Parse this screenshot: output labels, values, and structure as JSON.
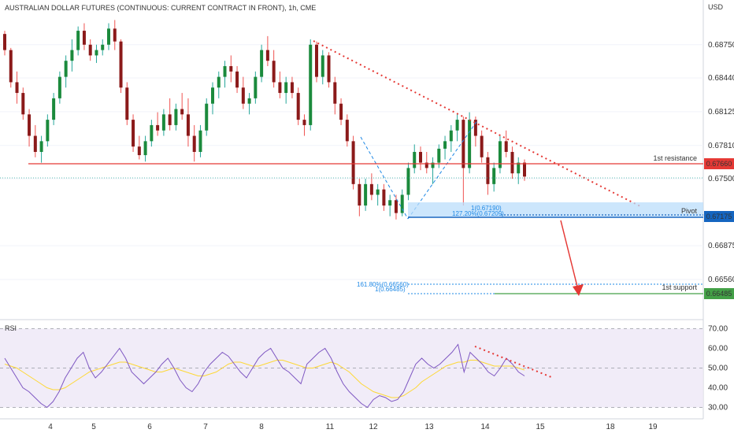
{
  "header": {
    "title": "AUSTRALIAN DOLLAR FUTURES (CONTINUOUS: CURRENT CONTRACT IN FRONT), 1h, CME",
    "currency": "USD"
  },
  "colors": {
    "up": "#26a69a",
    "up_body": "#1b8a3c",
    "down": "#ef5350",
    "down_body": "#8b1a1a",
    "resistance": "#e53935",
    "support": "#43a047",
    "pivot": "#1565c0",
    "fib_blue": "#1e88e5",
    "rsi_line": "#7e57c2",
    "rsi_ma": "#fdd835",
    "rsi_band": "#ede7f6"
  },
  "chart_data": {
    "type": "candlestick",
    "instrument": "AUSTRALIAN DOLLAR FUTURES (CONTINUOUS: CURRENT CONTRACT IN FRONT)",
    "timeframe": "1h",
    "exchange": "CME",
    "currency": "USD",
    "x_ticks": [
      "4",
      "5",
      "6",
      "7",
      "8",
      "11",
      "12",
      "13",
      "14",
      "15",
      "18",
      "19"
    ],
    "y_ticks": [
      0.6875,
      0.6844,
      0.68125,
      0.6781,
      0.675,
      0.66875,
      0.6656
    ],
    "y_tick_labels": [
      "0.68750",
      "0.68440",
      "0.68125",
      "0.67810",
      "0.67500",
      "0.66875",
      "0.66560"
    ],
    "ylim": [
      0.6623,
      0.6902
    ],
    "levels": [
      {
        "name": "1st resistance",
        "value": 0.6766,
        "label": "0.67660"
      },
      {
        "name": "Pivot",
        "value": 0.67175,
        "label": "0.67175"
      },
      {
        "name": "1st support",
        "value": 0.66485,
        "label": "0.66485"
      }
    ],
    "fib_labels": {
      "pivot_a": "1(0.67190)",
      "pivot_b": "127.20%(0.67209)",
      "support_a": "161.80%(0.66560)",
      "support_b": "1(0.66485)"
    },
    "candles": [
      {
        "o": 0.6885,
        "h": 0.6888,
        "l": 0.6865,
        "c": 0.687
      },
      {
        "o": 0.687,
        "h": 0.6872,
        "l": 0.6835,
        "c": 0.684
      },
      {
        "o": 0.684,
        "h": 0.685,
        "l": 0.682,
        "c": 0.683
      },
      {
        "o": 0.683,
        "h": 0.6835,
        "l": 0.6805,
        "c": 0.681
      },
      {
        "o": 0.681,
        "h": 0.6815,
        "l": 0.678,
        "c": 0.679
      },
      {
        "o": 0.679,
        "h": 0.68,
        "l": 0.677,
        "c": 0.6775
      },
      {
        "o": 0.6775,
        "h": 0.679,
        "l": 0.6765,
        "c": 0.6785
      },
      {
        "o": 0.6785,
        "h": 0.681,
        "l": 0.678,
        "c": 0.6805
      },
      {
        "o": 0.6805,
        "h": 0.683,
        "l": 0.68,
        "c": 0.6825
      },
      {
        "o": 0.6825,
        "h": 0.685,
        "l": 0.682,
        "c": 0.6845
      },
      {
        "o": 0.6845,
        "h": 0.6865,
        "l": 0.6835,
        "c": 0.686
      },
      {
        "o": 0.686,
        "h": 0.688,
        "l": 0.685,
        "c": 0.687
      },
      {
        "o": 0.687,
        "h": 0.6892,
        "l": 0.6865,
        "c": 0.6888
      },
      {
        "o": 0.6888,
        "h": 0.6895,
        "l": 0.687,
        "c": 0.6875
      },
      {
        "o": 0.6875,
        "h": 0.688,
        "l": 0.686,
        "c": 0.6865
      },
      {
        "o": 0.6865,
        "h": 0.6875,
        "l": 0.6858,
        "c": 0.687
      },
      {
        "o": 0.687,
        "h": 0.688,
        "l": 0.6865,
        "c": 0.6875
      },
      {
        "o": 0.6875,
        "h": 0.6895,
        "l": 0.687,
        "c": 0.689
      },
      {
        "o": 0.689,
        "h": 0.6898,
        "l": 0.687,
        "c": 0.6878
      },
      {
        "o": 0.6878,
        "h": 0.688,
        "l": 0.683,
        "c": 0.6835
      },
      {
        "o": 0.6835,
        "h": 0.684,
        "l": 0.68,
        "c": 0.6805
      },
      {
        "o": 0.6805,
        "h": 0.681,
        "l": 0.6775,
        "c": 0.678
      },
      {
        "o": 0.678,
        "h": 0.679,
        "l": 0.6768,
        "c": 0.6772
      },
      {
        "o": 0.6772,
        "h": 0.679,
        "l": 0.6766,
        "c": 0.6785
      },
      {
        "o": 0.6785,
        "h": 0.6805,
        "l": 0.678,
        "c": 0.68
      },
      {
        "o": 0.68,
        "h": 0.6812,
        "l": 0.679,
        "c": 0.6795
      },
      {
        "o": 0.6795,
        "h": 0.6815,
        "l": 0.679,
        "c": 0.681
      },
      {
        "o": 0.681,
        "h": 0.6825,
        "l": 0.6795,
        "c": 0.68
      },
      {
        "o": 0.68,
        "h": 0.682,
        "l": 0.6795,
        "c": 0.6815
      },
      {
        "o": 0.6815,
        "h": 0.683,
        "l": 0.6805,
        "c": 0.681
      },
      {
        "o": 0.681,
        "h": 0.6825,
        "l": 0.678,
        "c": 0.679
      },
      {
        "o": 0.679,
        "h": 0.68,
        "l": 0.6766,
        "c": 0.6775
      },
      {
        "o": 0.6775,
        "h": 0.68,
        "l": 0.677,
        "c": 0.6795
      },
      {
        "o": 0.6795,
        "h": 0.6825,
        "l": 0.679,
        "c": 0.682
      },
      {
        "o": 0.682,
        "h": 0.684,
        "l": 0.681,
        "c": 0.6835
      },
      {
        "o": 0.6835,
        "h": 0.685,
        "l": 0.6825,
        "c": 0.6845
      },
      {
        "o": 0.6845,
        "h": 0.686,
        "l": 0.6835,
        "c": 0.6855
      },
      {
        "o": 0.6855,
        "h": 0.6865,
        "l": 0.684,
        "c": 0.685
      },
      {
        "o": 0.685,
        "h": 0.6855,
        "l": 0.683,
        "c": 0.6835
      },
      {
        "o": 0.6835,
        "h": 0.6845,
        "l": 0.6815,
        "c": 0.682
      },
      {
        "o": 0.682,
        "h": 0.683,
        "l": 0.681,
        "c": 0.6825
      },
      {
        "o": 0.6825,
        "h": 0.685,
        "l": 0.682,
        "c": 0.6845
      },
      {
        "o": 0.6845,
        "h": 0.6875,
        "l": 0.684,
        "c": 0.687
      },
      {
        "o": 0.687,
        "h": 0.6883,
        "l": 0.6855,
        "c": 0.686
      },
      {
        "o": 0.686,
        "h": 0.687,
        "l": 0.6835,
        "c": 0.684
      },
      {
        "o": 0.684,
        "h": 0.685,
        "l": 0.6825,
        "c": 0.683
      },
      {
        "o": 0.683,
        "h": 0.6845,
        "l": 0.682,
        "c": 0.684
      },
      {
        "o": 0.684,
        "h": 0.6845,
        "l": 0.6825,
        "c": 0.683
      },
      {
        "o": 0.683,
        "h": 0.6835,
        "l": 0.68,
        "c": 0.6805
      },
      {
        "o": 0.6805,
        "h": 0.681,
        "l": 0.679,
        "c": 0.68
      },
      {
        "o": 0.68,
        "h": 0.688,
        "l": 0.6795,
        "c": 0.6875
      },
      {
        "o": 0.6875,
        "h": 0.6878,
        "l": 0.684,
        "c": 0.6845
      },
      {
        "o": 0.6845,
        "h": 0.687,
        "l": 0.6838,
        "c": 0.6865
      },
      {
        "o": 0.6865,
        "h": 0.6868,
        "l": 0.6835,
        "c": 0.684
      },
      {
        "o": 0.684,
        "h": 0.6845,
        "l": 0.681,
        "c": 0.682
      },
      {
        "o": 0.682,
        "h": 0.6825,
        "l": 0.68,
        "c": 0.6805
      },
      {
        "o": 0.6805,
        "h": 0.681,
        "l": 0.678,
        "c": 0.6785
      },
      {
        "o": 0.6785,
        "h": 0.679,
        "l": 0.674,
        "c": 0.6745
      },
      {
        "o": 0.6745,
        "h": 0.675,
        "l": 0.6715,
        "c": 0.6725
      },
      {
        "o": 0.6725,
        "h": 0.675,
        "l": 0.672,
        "c": 0.6745
      },
      {
        "o": 0.6745,
        "h": 0.6755,
        "l": 0.673,
        "c": 0.6735
      },
      {
        "o": 0.6735,
        "h": 0.6745,
        "l": 0.6725,
        "c": 0.674
      },
      {
        "o": 0.674,
        "h": 0.6745,
        "l": 0.672,
        "c": 0.6725
      },
      {
        "o": 0.6725,
        "h": 0.6735,
        "l": 0.6715,
        "c": 0.673
      },
      {
        "o": 0.673,
        "h": 0.6735,
        "l": 0.6712,
        "c": 0.6718
      },
      {
        "o": 0.6718,
        "h": 0.674,
        "l": 0.6715,
        "c": 0.6735
      },
      {
        "o": 0.6735,
        "h": 0.6765,
        "l": 0.673,
        "c": 0.676
      },
      {
        "o": 0.676,
        "h": 0.6782,
        "l": 0.6755,
        "c": 0.6775
      },
      {
        "o": 0.6775,
        "h": 0.678,
        "l": 0.6758,
        "c": 0.6765
      },
      {
        "o": 0.6765,
        "h": 0.6775,
        "l": 0.6755,
        "c": 0.676
      },
      {
        "o": 0.676,
        "h": 0.677,
        "l": 0.6745,
        "c": 0.6765
      },
      {
        "o": 0.6765,
        "h": 0.6782,
        "l": 0.676,
        "c": 0.6778
      },
      {
        "o": 0.6778,
        "h": 0.679,
        "l": 0.6768,
        "c": 0.6785
      },
      {
        "o": 0.6785,
        "h": 0.68,
        "l": 0.6775,
        "c": 0.6795
      },
      {
        "o": 0.6795,
        "h": 0.681,
        "l": 0.6785,
        "c": 0.6805
      },
      {
        "o": 0.6805,
        "h": 0.6808,
        "l": 0.6725,
        "c": 0.676
      },
      {
        "o": 0.676,
        "h": 0.6812,
        "l": 0.6755,
        "c": 0.6805
      },
      {
        "o": 0.6805,
        "h": 0.6808,
        "l": 0.678,
        "c": 0.679
      },
      {
        "o": 0.679,
        "h": 0.6795,
        "l": 0.6765,
        "c": 0.677
      },
      {
        "o": 0.677,
        "h": 0.6775,
        "l": 0.6735,
        "c": 0.6745
      },
      {
        "o": 0.6745,
        "h": 0.6765,
        "l": 0.6738,
        "c": 0.676
      },
      {
        "o": 0.676,
        "h": 0.679,
        "l": 0.6755,
        "c": 0.6785
      },
      {
        "o": 0.6785,
        "h": 0.6795,
        "l": 0.677,
        "c": 0.6775
      },
      {
        "o": 0.6775,
        "h": 0.678,
        "l": 0.675,
        "c": 0.6755
      },
      {
        "o": 0.6755,
        "h": 0.677,
        "l": 0.6745,
        "c": 0.6765
      },
      {
        "o": 0.6765,
        "h": 0.6768,
        "l": 0.6748,
        "c": 0.6752
      }
    ],
    "rsi": {
      "label": "RSI",
      "y_ticks": [
        70,
        60,
        50,
        40,
        30
      ],
      "y_tick_labels": [
        "70.00",
        "60.00",
        "50.00",
        "40.00",
        "30.00"
      ],
      "band": [
        30,
        70
      ],
      "ylim": [
        25,
        73
      ],
      "values": [
        55,
        50,
        45,
        40,
        38,
        35,
        32,
        30,
        33,
        38,
        45,
        50,
        55,
        58,
        50,
        45,
        48,
        52,
        56,
        60,
        55,
        48,
        45,
        42,
        45,
        48,
        52,
        55,
        50,
        44,
        40,
        38,
        42,
        48,
        52,
        55,
        58,
        56,
        52,
        48,
        45,
        50,
        55,
        58,
        60,
        55,
        50,
        48,
        45,
        42,
        52,
        55,
        58,
        60,
        55,
        48,
        42,
        38,
        35,
        32,
        30,
        34,
        36,
        35,
        33,
        34,
        38,
        45,
        52,
        55,
        52,
        50,
        52,
        55,
        58,
        62,
        48,
        58,
        55,
        52,
        48,
        46,
        50,
        55,
        52,
        48,
        46
      ],
      "ma": [
        52,
        51,
        50,
        48,
        46,
        44,
        42,
        40,
        39,
        39,
        40,
        42,
        44,
        46,
        48,
        49,
        50,
        51,
        52,
        53,
        53,
        52,
        51,
        50,
        49,
        48,
        48,
        49,
        50,
        49,
        48,
        47,
        46,
        46,
        47,
        48,
        50,
        52,
        53,
        53,
        52,
        51,
        51,
        52,
        53,
        54,
        54,
        53,
        52,
        51,
        50,
        50,
        51,
        52,
        53,
        52,
        50,
        48,
        45,
        42,
        40,
        38,
        37,
        36,
        35,
        35,
        36,
        38,
        40,
        43,
        45,
        47,
        49,
        51,
        52,
        53,
        53,
        54,
        54,
        53,
        52,
        51,
        51,
        51,
        51,
        50,
        49
      ]
    }
  }
}
